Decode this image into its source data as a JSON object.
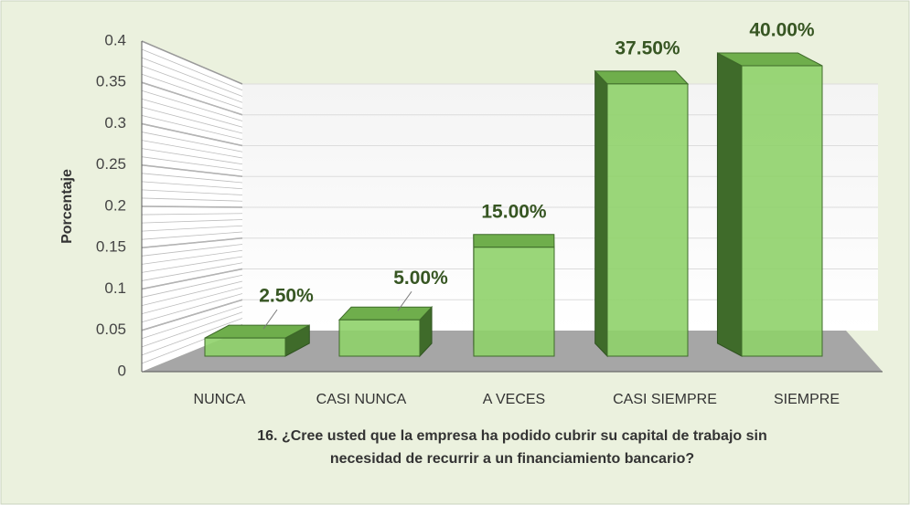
{
  "chart_data": {
    "type": "bar3d",
    "ylabel": "Porcentaje",
    "xlabel": [
      "16. ¿Cree usted que la empresa ha podido cubrir su capital de trabajo sin",
      "necesidad de recurrir a un financiamiento bancario?"
    ],
    "categories": [
      "NUNCA",
      "CASI NUNCA",
      "A VECES",
      "CASI SIEMPRE",
      "SIEMPRE"
    ],
    "values": [
      0.025,
      0.05,
      0.15,
      0.375,
      0.4
    ],
    "value_labels": [
      "2.50%",
      "5.00%",
      "15.00%",
      "37.50%",
      "40.00%"
    ],
    "color": "#8fd16a",
    "ylim": [
      0,
      0.4
    ],
    "yticks": [
      0,
      0.05,
      0.1,
      0.15,
      0.2,
      0.25,
      0.3,
      0.35,
      0.4
    ],
    "grid": true
  }
}
